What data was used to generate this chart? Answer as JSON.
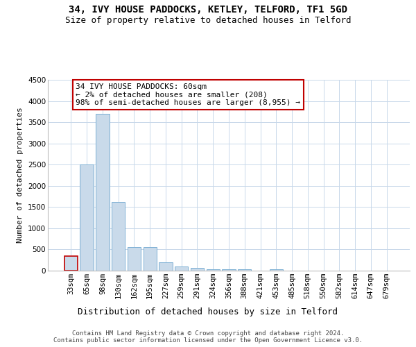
{
  "title1": "34, IVY HOUSE PADDOCKS, KETLEY, TELFORD, TF1 5GD",
  "title2": "Size of property relative to detached houses in Telford",
  "xlabel": "Distribution of detached houses by size in Telford",
  "ylabel": "Number of detached properties",
  "categories": [
    "33sqm",
    "65sqm",
    "98sqm",
    "130sqm",
    "162sqm",
    "195sqm",
    "227sqm",
    "259sqm",
    "291sqm",
    "324sqm",
    "356sqm",
    "388sqm",
    "421sqm",
    "453sqm",
    "485sqm",
    "518sqm",
    "550sqm",
    "582sqm",
    "614sqm",
    "647sqm",
    "679sqm"
  ],
  "values": [
    350,
    2500,
    3700,
    1625,
    560,
    560,
    200,
    100,
    60,
    40,
    35,
    30,
    0,
    35,
    0,
    0,
    0,
    0,
    0,
    0,
    0
  ],
  "bar_color": "#c9daea",
  "bar_edge_color": "#7bafd4",
  "highlight_bar_index": 0,
  "highlight_edge_color": "#c00000",
  "ylim": [
    0,
    4500
  ],
  "yticks": [
    0,
    500,
    1000,
    1500,
    2000,
    2500,
    3000,
    3500,
    4000,
    4500
  ],
  "annotation_text": "34 IVY HOUSE PADDOCKS: 60sqm\n← 2% of detached houses are smaller (208)\n98% of semi-detached houses are larger (8,955) →",
  "annotation_box_color": "#ffffff",
  "annotation_box_edge_color": "#c00000",
  "footer_text": "Contains HM Land Registry data © Crown copyright and database right 2024.\nContains public sector information licensed under the Open Government Licence v3.0.",
  "background_color": "#ffffff",
  "grid_color": "#c8d8ea",
  "title1_fontsize": 10,
  "title2_fontsize": 9,
  "xlabel_fontsize": 9,
  "ylabel_fontsize": 8,
  "tick_fontsize": 7.5,
  "annotation_fontsize": 8,
  "footer_fontsize": 6.5
}
